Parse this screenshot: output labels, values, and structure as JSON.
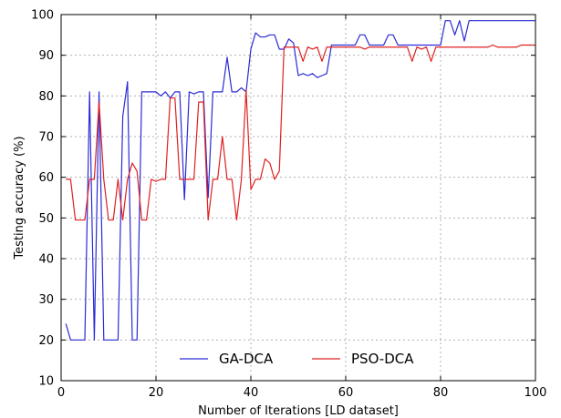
{
  "chart_data": {
    "type": "line",
    "title": "",
    "xlabel": "Number of Iterations [LD dataset]",
    "ylabel": "Testing accuracy (%)",
    "xlim": [
      0,
      100
    ],
    "ylim": [
      10,
      100
    ],
    "xticks": [
      0,
      20,
      40,
      60,
      80,
      100
    ],
    "yticks": [
      10,
      20,
      30,
      40,
      50,
      60,
      70,
      80,
      90,
      100
    ],
    "grid": true,
    "legend_position": "bottom-center",
    "series": [
      {
        "name": "GA-DCA",
        "color": "#2b2bd6",
        "x": [
          1,
          2,
          3,
          4,
          5,
          6,
          7,
          8,
          9,
          10,
          11,
          12,
          13,
          14,
          15,
          16,
          17,
          18,
          19,
          20,
          21,
          22,
          23,
          24,
          25,
          26,
          27,
          28,
          29,
          30,
          31,
          32,
          33,
          34,
          35,
          36,
          37,
          38,
          39,
          40,
          41,
          42,
          43,
          44,
          45,
          46,
          47,
          48,
          49,
          50,
          51,
          52,
          53,
          54,
          55,
          56,
          57,
          58,
          59,
          60,
          61,
          62,
          63,
          64,
          65,
          66,
          67,
          68,
          69,
          70,
          71,
          72,
          73,
          74,
          75,
          76,
          77,
          78,
          79,
          80,
          81,
          82,
          83,
          84,
          85,
          86,
          87,
          88,
          89,
          90,
          91,
          92,
          93,
          94,
          95,
          96,
          97,
          98,
          99,
          100
        ],
        "y": [
          24,
          20,
          20,
          20,
          20,
          81,
          20,
          81,
          20,
          20,
          20,
          20,
          75,
          83.5,
          20,
          20,
          81,
          81,
          81,
          81,
          80,
          81,
          79.5,
          81,
          81,
          54.5,
          81,
          80.5,
          81,
          81,
          55,
          81,
          81,
          81,
          89.5,
          81,
          81,
          82,
          81,
          91.5,
          95.5,
          94.5,
          94.5,
          95,
          95,
          91.5,
          91.5,
          94,
          93,
          85,
          85.5,
          85,
          85.5,
          84.5,
          85,
          85.5,
          92.5,
          92.5,
          92.5,
          92.5,
          92.5,
          92.5,
          95,
          95,
          92.5,
          92.5,
          92.5,
          92.5,
          95,
          95,
          92.5,
          92.5,
          92.5,
          92.5,
          92.5,
          92.5,
          92.5,
          92.5,
          92.5,
          92.5,
          98.5,
          98.5,
          95,
          98.5,
          93.5,
          98.5,
          98.5,
          98.5,
          98.5,
          98.5,
          98.5,
          98.5,
          98.5,
          98.5,
          98.5,
          98.5,
          98.5,
          98.5,
          98.5,
          98.5
        ]
      },
      {
        "name": "PSO-DCA",
        "color": "#e02020",
        "x": [
          1,
          2,
          3,
          4,
          5,
          6,
          7,
          8,
          9,
          10,
          11,
          12,
          13,
          14,
          15,
          16,
          17,
          18,
          19,
          20,
          21,
          22,
          23,
          24,
          25,
          26,
          27,
          28,
          29,
          30,
          31,
          32,
          33,
          34,
          35,
          36,
          37,
          38,
          39,
          40,
          41,
          42,
          43,
          44,
          45,
          46,
          47,
          48,
          49,
          50,
          51,
          52,
          53,
          54,
          55,
          56,
          57,
          58,
          59,
          60,
          61,
          62,
          63,
          64,
          65,
          66,
          67,
          68,
          69,
          70,
          71,
          72,
          73,
          74,
          75,
          76,
          77,
          78,
          79,
          80,
          81,
          82,
          83,
          84,
          85,
          86,
          87,
          88,
          89,
          90,
          91,
          92,
          93,
          94,
          95,
          96,
          97,
          98,
          99,
          100
        ],
        "y": [
          59.5,
          59.5,
          49.5,
          49.5,
          49.5,
          59.5,
          59.5,
          78.5,
          59.5,
          49.5,
          49.5,
          59.5,
          49.5,
          59.5,
          63.5,
          61.5,
          49.5,
          49.5,
          59.5,
          59,
          59.5,
          59.5,
          79.5,
          79.5,
          59.5,
          59.5,
          59.5,
          59.5,
          78.5,
          78.5,
          49.5,
          59.5,
          59.5,
          70,
          59.5,
          59.5,
          49.5,
          59.5,
          81.5,
          57,
          59.5,
          59.5,
          64.5,
          63.5,
          59.5,
          61.5,
          92,
          92,
          92,
          92,
          88.5,
          92,
          91.5,
          92,
          88.5,
          92,
          92,
          92,
          92,
          92,
          92,
          92,
          92,
          91.5,
          92,
          92,
          92,
          92,
          92,
          92,
          92,
          92,
          92,
          88.5,
          92,
          91.5,
          92,
          88.5,
          92,
          92,
          92,
          92,
          92,
          92,
          92,
          92,
          92,
          92,
          92,
          92,
          92.5,
          92,
          92,
          92,
          92,
          92,
          92.5,
          92.5,
          92.5,
          92.5
        ]
      }
    ]
  }
}
